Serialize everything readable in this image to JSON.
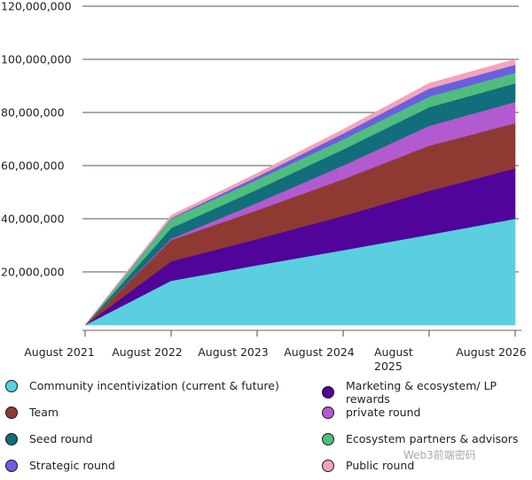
{
  "chart_data": {
    "type": "area",
    "stacked": true,
    "title": "",
    "xlabel": "",
    "ylabel": "",
    "categories": [
      "August 2021",
      "August 2022",
      "August 2023",
      "August 2024",
      "August 2025",
      "August 2026"
    ],
    "category_display": [
      [
        "August 2021"
      ],
      [
        "August 2022"
      ],
      [
        "August 2023"
      ],
      [
        "August 2024"
      ],
      [
        "August",
        "2025"
      ],
      [
        "August 2026"
      ]
    ],
    "ylim": [
      0,
      120000000
    ],
    "yticks": [
      20000000,
      40000000,
      60000000,
      80000000,
      100000000,
      120000000
    ],
    "ytick_labels": [
      "20,000,000",
      "40,000,000",
      "60,000,000",
      "80,000,000",
      "100,000,000",
      "120,000,000"
    ],
    "grid": true,
    "legend_position": "bottom",
    "series": [
      {
        "name": "Community incentivization (current & future)",
        "color": "#5bcfe0",
        "values": [
          0,
          16700000,
          22500000,
          28200000,
          34000000,
          40000000
        ]
      },
      {
        "name": "Marketing & ecosystem/ LP rewards",
        "color": "#50049a",
        "values": [
          0,
          7300000,
          9900000,
          12900000,
          16500000,
          19000000
        ]
      },
      {
        "name": "Team",
        "color": "#8e3a33",
        "values": [
          0,
          8000000,
          10800000,
          13800000,
          17000000,
          17000000
        ]
      },
      {
        "name": "private round",
        "color": "#b25ad0",
        "values": [
          0,
          500000,
          2800000,
          5200000,
          7500000,
          8000000
        ]
      },
      {
        "name": "Seed round",
        "color": "#126e7a",
        "values": [
          0,
          4000000,
          5000000,
          6000000,
          7000000,
          7000000
        ]
      },
      {
        "name": "Ecosystem partners & advisors",
        "color": "#4fbd7f",
        "values": [
          0,
          3500000,
          3700000,
          3800000,
          4000000,
          4000000
        ]
      },
      {
        "name": "Strategic round",
        "color": "#6a5fde",
        "values": [
          0,
          300000,
          1200000,
          2200000,
          3000000,
          3000000
        ]
      },
      {
        "name": "Public round",
        "color": "#f4a3ba",
        "values": [
          0,
          1000000,
          1200000,
          1500000,
          2000000,
          2000000
        ]
      }
    ]
  },
  "legend": {
    "items": [
      {
        "label": "Community incentivization (current & future)",
        "color": "#5bcfe0"
      },
      {
        "label": "Marketing & ecosystem/ LP rewards",
        "color": "#50049a"
      },
      {
        "label": "Team",
        "color": "#8e3a33"
      },
      {
        "label": "private round",
        "color": "#b25ad0"
      },
      {
        "label": "Seed round",
        "color": "#126e7a"
      },
      {
        "label": "Ecosystem partners & advisors",
        "color": "#4fbd7f"
      },
      {
        "label": "Strategic round",
        "color": "#6a5fde"
      },
      {
        "label": "Public round",
        "color": "#f4a3ba"
      }
    ]
  },
  "watermark": {
    "text": "Web3前端密码"
  }
}
